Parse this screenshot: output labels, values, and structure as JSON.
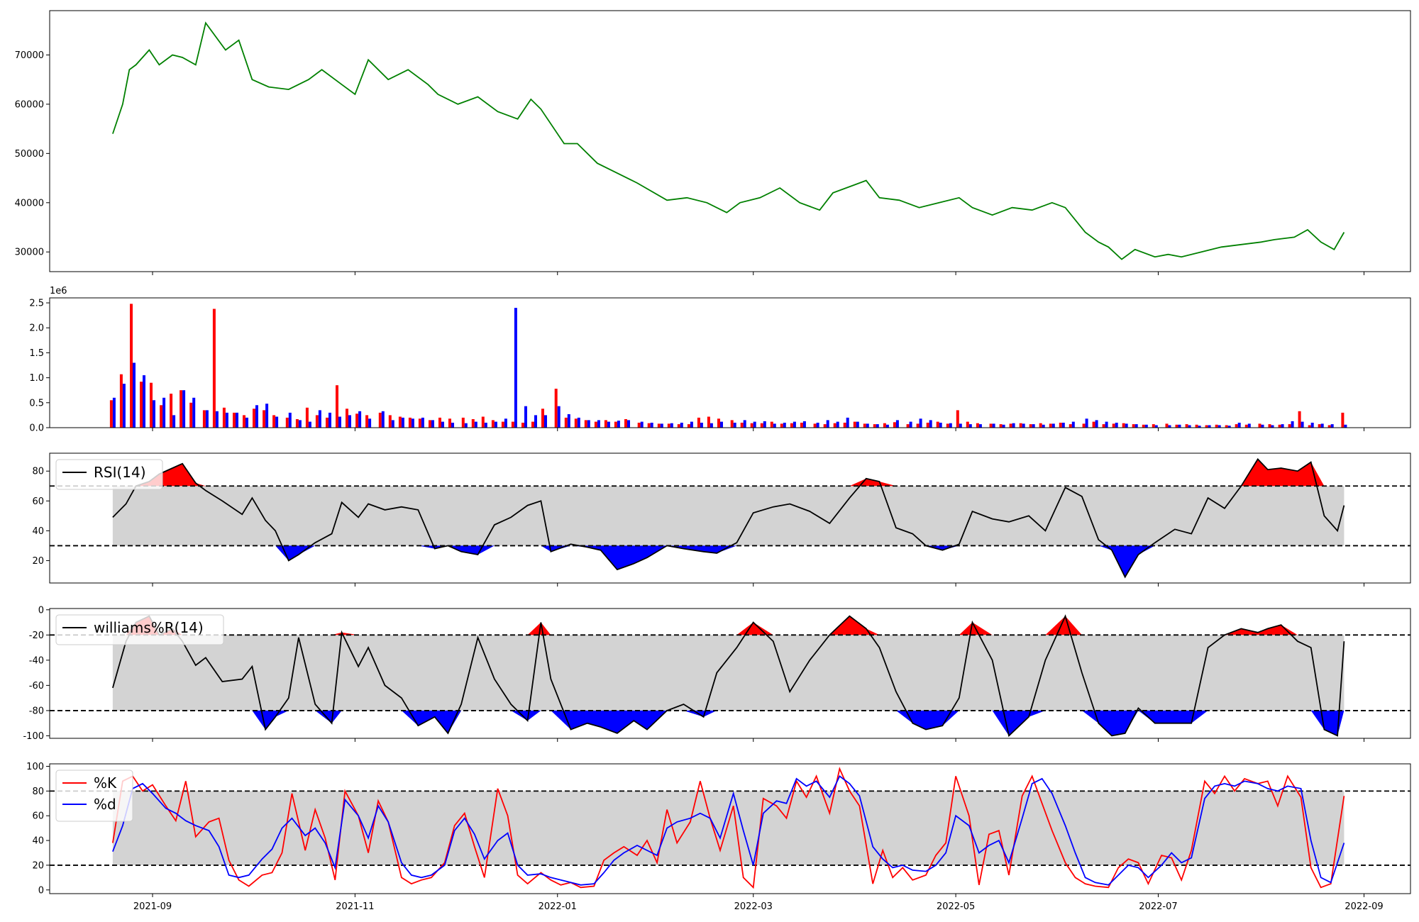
{
  "chart_data": [
    {
      "type": "line",
      "panel": "price",
      "color": "#008000",
      "x_axis": "date",
      "ylim": [
        26000,
        79000
      ],
      "yticks": [
        30000,
        40000,
        50000,
        60000,
        70000
      ],
      "x": [
        "2021-08-20",
        "2021-08-23",
        "2021-08-25",
        "2021-08-27",
        "2021-08-31",
        "2021-09-03",
        "2021-09-07",
        "2021-09-10",
        "2021-09-14",
        "2021-09-17",
        "2021-09-23",
        "2021-09-27",
        "2021-10-01",
        "2021-10-06",
        "2021-10-12",
        "2021-10-18",
        "2021-10-22",
        "2021-10-28",
        "2021-11-01",
        "2021-11-05",
        "2021-11-11",
        "2021-11-17",
        "2021-11-23",
        "2021-11-26",
        "2021-12-02",
        "2021-12-08",
        "2021-12-14",
        "2021-12-20",
        "2021-12-24",
        "2021-12-27",
        "2022-01-03",
        "2022-01-07",
        "2022-01-13",
        "2022-01-19",
        "2022-01-25",
        "2022-02-03",
        "2022-02-09",
        "2022-02-15",
        "2022-02-21",
        "2022-02-25",
        "2022-03-03",
        "2022-03-09",
        "2022-03-15",
        "2022-03-21",
        "2022-03-25",
        "2022-03-31",
        "2022-04-04",
        "2022-04-08",
        "2022-04-14",
        "2022-04-20",
        "2022-04-26",
        "2022-05-02",
        "2022-05-06",
        "2022-05-12",
        "2022-05-18",
        "2022-05-24",
        "2022-05-30",
        "2022-06-03",
        "2022-06-09",
        "2022-06-13",
        "2022-06-16",
        "2022-06-20",
        "2022-06-24",
        "2022-06-30",
        "2022-07-04",
        "2022-07-08",
        "2022-07-14",
        "2022-07-20",
        "2022-07-26",
        "2022-08-01",
        "2022-08-05",
        "2022-08-11",
        "2022-08-15",
        "2022-08-19",
        "2022-08-23",
        "2022-08-26"
      ],
      "values": [
        54000,
        60000,
        67000,
        68000,
        71000,
        68000,
        70000,
        69500,
        68000,
        76500,
        71000,
        73000,
        65000,
        63500,
        63000,
        65000,
        67000,
        64000,
        62000,
        69000,
        65000,
        67000,
        64000,
        62000,
        60000,
        61500,
        58500,
        57000,
        61000,
        59000,
        52000,
        52000,
        48000,
        46000,
        44000,
        40500,
        41000,
        40000,
        38000,
        40000,
        41000,
        43000,
        40000,
        38500,
        42000,
        43500,
        44500,
        41000,
        40500,
        39000,
        40000,
        41000,
        39000,
        37500,
        39000,
        38500,
        40000,
        39000,
        34000,
        32000,
        31000,
        28500,
        30500,
        29000,
        29500,
        29000,
        30000,
        31000,
        31500,
        32000,
        32500,
        33000,
        34500,
        32000,
        30500,
        34000
      ]
    },
    {
      "type": "bar",
      "panel": "volume",
      "exponent_label": "1e6",
      "ylim": [
        0,
        2.6
      ],
      "yticks": [
        "0.0",
        "0.5",
        "1.0",
        "1.5",
        "2.0",
        "2.5"
      ],
      "x_start": "2021-08-20",
      "x_end": "2022-08-26",
      "series": [
        {
          "color": "#ff0000",
          "values_millions": [
            0.55,
            1.07,
            2.48,
            0.92,
            0.9,
            0.45,
            0.68,
            0.75,
            0.5,
            0.35,
            2.38,
            0.4,
            0.3,
            0.25,
            0.38,
            0.35,
            0.25,
            0.2,
            0.17,
            0.4,
            0.25,
            0.2,
            0.85,
            0.38,
            0.28,
            0.25,
            0.3,
            0.25,
            0.22,
            0.2,
            0.18,
            0.15,
            0.2,
            0.18,
            0.2,
            0.17,
            0.22,
            0.15,
            0.12,
            0.12,
            0.1,
            0.12,
            0.38,
            0.78,
            0.2,
            0.18,
            0.15,
            0.12,
            0.15,
            0.12,
            0.17,
            0.1,
            0.09,
            0.08,
            0.08,
            0.07,
            0.07,
            0.2,
            0.22,
            0.18,
            0.15,
            0.1,
            0.09,
            0.09,
            0.12,
            0.08,
            0.09,
            0.1,
            0.08,
            0.07,
            0.09,
            0.1,
            0.12,
            0.08,
            0.07,
            0.09,
            0.11,
            0.07,
            0.08,
            0.1,
            0.12,
            0.08,
            0.35,
            0.12,
            0.09,
            0.08,
            0.07,
            0.08,
            0.09,
            0.07,
            0.09,
            0.08,
            0.1,
            0.07,
            0.08,
            0.12,
            0.07,
            0.08,
            0.09,
            0.07,
            0.06,
            0.07,
            0.08,
            0.06,
            0.07,
            0.06,
            0.05,
            0.06,
            0.05,
            0.07,
            0.06,
            0.08,
            0.07,
            0.06,
            0.07,
            0.33,
            0.05,
            0.07,
            0.05,
            0.3
          ]
        },
        {
          "color": "#0000ff",
          "values_millions": [
            0.6,
            0.88,
            1.3,
            1.05,
            0.55,
            0.6,
            0.25,
            0.75,
            0.6,
            0.35,
            0.33,
            0.3,
            0.3,
            0.2,
            0.45,
            0.48,
            0.22,
            0.3,
            0.15,
            0.12,
            0.35,
            0.3,
            0.22,
            0.25,
            0.33,
            0.18,
            0.33,
            0.15,
            0.2,
            0.18,
            0.2,
            0.15,
            0.12,
            0.1,
            0.09,
            0.12,
            0.1,
            0.12,
            0.18,
            2.4,
            0.43,
            0.25,
            0.25,
            0.43,
            0.27,
            0.2,
            0.15,
            0.15,
            0.12,
            0.14,
            0.15,
            0.12,
            0.1,
            0.08,
            0.09,
            0.1,
            0.12,
            0.1,
            0.09,
            0.12,
            0.1,
            0.15,
            0.12,
            0.13,
            0.08,
            0.1,
            0.12,
            0.13,
            0.1,
            0.15,
            0.12,
            0.2,
            0.12,
            0.08,
            0.07,
            0.06,
            0.15,
            0.12,
            0.18,
            0.15,
            0.1,
            0.09,
            0.08,
            0.07,
            0.07,
            0.08,
            0.06,
            0.09,
            0.08,
            0.07,
            0.06,
            0.08,
            0.1,
            0.12,
            0.18,
            0.15,
            0.12,
            0.1,
            0.08,
            0.07,
            0.06,
            0.05,
            0.05,
            0.06,
            0.05,
            0.04,
            0.05,
            0.05,
            0.04,
            0.1,
            0.08,
            0.06,
            0.05,
            0.07,
            0.13,
            0.12,
            0.1,
            0.08,
            0.07,
            0.06
          ]
        }
      ]
    },
    {
      "type": "line",
      "panel": "rsi",
      "legend": [
        "RSI(14)"
      ],
      "legend_position": "upper-left",
      "ylim": [
        5,
        92
      ],
      "yticks": [
        20,
        40,
        60,
        80
      ],
      "upper_threshold": 70,
      "lower_threshold": 30,
      "colors": {
        "line": "#000000",
        "overbought": "#ff0000",
        "oversold": "#0000ff",
        "band": "#d3d3d3"
      },
      "x": [
        "2021-08-20",
        "2021-08-24",
        "2021-08-27",
        "2021-08-31",
        "2021-09-03",
        "2021-09-07",
        "2021-09-10",
        "2021-09-14",
        "2021-09-17",
        "2021-09-22",
        "2021-09-28",
        "2021-10-01",
        "2021-10-05",
        "2021-10-08",
        "2021-10-12",
        "2021-10-15",
        "2021-10-20",
        "2021-10-25",
        "2021-10-28",
        "2021-11-02",
        "2021-11-05",
        "2021-11-10",
        "2021-11-15",
        "2021-11-20",
        "2021-11-25",
        "2021-11-29",
        "2021-12-03",
        "2021-12-08",
        "2021-12-13",
        "2021-12-18",
        "2021-12-23",
        "2021-12-27",
        "2021-12-30",
        "2022-01-05",
        "2022-01-10",
        "2022-01-14",
        "2022-01-19",
        "2022-01-24",
        "2022-01-28",
        "2022-02-03",
        "2022-02-08",
        "2022-02-14",
        "2022-02-18",
        "2022-02-24",
        "2022-03-01",
        "2022-03-07",
        "2022-03-12",
        "2022-03-18",
        "2022-03-24",
        "2022-03-30",
        "2022-04-04",
        "2022-04-08",
        "2022-04-13",
        "2022-04-18",
        "2022-04-22",
        "2022-04-27",
        "2022-05-02",
        "2022-05-06",
        "2022-05-12",
        "2022-05-17",
        "2022-05-23",
        "2022-05-28",
        "2022-06-03",
        "2022-06-08",
        "2022-06-13",
        "2022-06-17",
        "2022-06-21",
        "2022-06-25",
        "2022-06-30",
        "2022-07-06",
        "2022-07-11",
        "2022-07-16",
        "2022-07-21",
        "2022-07-26",
        "2022-07-31",
        "2022-08-03",
        "2022-08-07",
        "2022-08-12",
        "2022-08-16",
        "2022-08-20",
        "2022-08-24",
        "2022-08-26"
      ],
      "values": [
        49,
        58,
        70,
        73,
        78,
        82,
        85,
        72,
        67,
        60,
        51,
        62,
        47,
        40,
        20,
        24,
        32,
        38,
        59,
        49,
        58,
        54,
        56,
        54,
        28,
        30,
        26,
        24,
        44,
        49,
        57,
        60,
        26,
        31,
        29,
        27,
        14,
        18,
        22,
        30,
        28,
        26,
        25,
        32,
        52,
        56,
        58,
        53,
        45,
        62,
        75,
        73,
        42,
        38,
        30,
        27,
        31,
        53,
        48,
        46,
        50,
        40,
        69,
        63,
        34,
        27,
        9,
        24,
        32,
        41,
        38,
        62,
        55,
        70,
        88,
        81,
        82,
        80,
        86,
        50,
        40,
        57
      ]
    },
    {
      "type": "line",
      "panel": "williams_r",
      "legend": [
        "williams%R(14)"
      ],
      "legend_position": "upper-left",
      "ylim": [
        -102,
        1
      ],
      "yticks": [
        -100,
        -80,
        -60,
        -40,
        -20,
        0
      ],
      "upper_threshold": -20,
      "lower_threshold": -80,
      "colors": {
        "line": "#000000",
        "overbought": "#ff0000",
        "oversold": "#0000ff",
        "band": "#d3d3d3"
      },
      "x": [
        "2021-08-20",
        "2021-08-24",
        "2021-08-27",
        "2021-08-31",
        "2021-09-03",
        "2021-09-07",
        "2021-09-10",
        "2021-09-14",
        "2021-09-17",
        "2021-09-22",
        "2021-09-28",
        "2021-10-01",
        "2021-10-05",
        "2021-10-08",
        "2021-10-12",
        "2021-10-15",
        "2021-10-20",
        "2021-10-25",
        "2021-10-28",
        "2021-11-02",
        "2021-11-05",
        "2021-11-10",
        "2021-11-15",
        "2021-11-20",
        "2021-11-25",
        "2021-11-29",
        "2021-12-03",
        "2021-12-08",
        "2021-12-13",
        "2021-12-18",
        "2021-12-23",
        "2021-12-27",
        "2021-12-30",
        "2022-01-05",
        "2022-01-10",
        "2022-01-14",
        "2022-01-19",
        "2022-01-24",
        "2022-01-28",
        "2022-02-03",
        "2022-02-08",
        "2022-02-14",
        "2022-02-18",
        "2022-02-24",
        "2022-03-01",
        "2022-03-07",
        "2022-03-12",
        "2022-03-18",
        "2022-03-24",
        "2022-03-30",
        "2022-04-04",
        "2022-04-08",
        "2022-04-13",
        "2022-04-18",
        "2022-04-22",
        "2022-04-27",
        "2022-05-02",
        "2022-05-06",
        "2022-05-12",
        "2022-05-17",
        "2022-05-23",
        "2022-05-28",
        "2022-06-03",
        "2022-06-08",
        "2022-06-13",
        "2022-06-17",
        "2022-06-21",
        "2022-06-25",
        "2022-06-30",
        "2022-07-06",
        "2022-07-11",
        "2022-07-16",
        "2022-07-21",
        "2022-07-26",
        "2022-07-31",
        "2022-08-03",
        "2022-08-07",
        "2022-08-12",
        "2022-08-16",
        "2022-08-20",
        "2022-08-24",
        "2022-08-26"
      ],
      "values": [
        -62,
        -25,
        -10,
        -5,
        -20,
        -15,
        -25,
        -44,
        -38,
        -57,
        -55,
        -45,
        -95,
        -85,
        -70,
        -22,
        -75,
        -90,
        -18,
        -45,
        -30,
        -60,
        -70,
        -92,
        -85,
        -98,
        -75,
        -22,
        -55,
        -75,
        -88,
        -10,
        -55,
        -95,
        -90,
        -93,
        -98,
        -88,
        -95,
        -80,
        -75,
        -85,
        -50,
        -30,
        -10,
        -25,
        -65,
        -40,
        -20,
        -5,
        -15,
        -30,
        -65,
        -90,
        -95,
        -92,
        -70,
        -10,
        -40,
        -100,
        -85,
        -40,
        -5,
        -50,
        -90,
        -100,
        -98,
        -78,
        -90,
        -90,
        -90,
        -30,
        -20,
        -15,
        -18,
        -15,
        -12,
        -25,
        -30,
        -95,
        -100,
        -25
      ]
    },
    {
      "type": "line",
      "panel": "stochastic",
      "legend": [
        "%K",
        "%d"
      ],
      "legend_position": "upper-left",
      "ylim": [
        -3,
        102
      ],
      "yticks": [
        0,
        20,
        40,
        60,
        80,
        100
      ],
      "upper_threshold": 80,
      "lower_threshold": 20,
      "x_start": "2021-08-20",
      "x_end": "2022-08-26",
      "series": [
        {
          "name": "%K",
          "color": "#ff0000",
          "values": [
            38,
            88,
            92,
            80,
            85,
            68,
            56,
            88,
            43,
            55,
            58,
            24,
            8,
            3,
            12,
            14,
            30,
            78,
            32,
            65,
            42,
            8,
            80,
            60,
            30,
            72,
            55,
            10,
            5,
            8,
            10,
            22,
            52,
            62,
            35,
            10,
            82,
            60,
            12,
            5,
            14,
            8,
            4,
            6,
            2,
            3,
            24,
            30,
            35,
            28,
            40,
            22,
            65,
            38,
            55,
            88,
            58,
            32,
            68,
            10,
            2,
            74,
            68,
            58,
            88,
            75,
            92,
            62,
            98,
            80,
            68,
            5,
            32,
            10,
            18,
            8,
            12,
            28,
            38,
            92,
            60,
            4,
            45,
            48,
            12,
            76,
            92,
            70,
            48,
            22,
            10,
            5,
            3,
            2,
            18,
            25,
            22,
            5,
            28,
            26,
            8,
            32,
            88,
            78,
            92,
            80,
            90,
            86,
            88,
            68,
            92,
            75,
            18,
            2,
            5,
            76
          ]
        },
        {
          "name": "%d",
          "color": "#0000ff",
          "values": [
            31,
            52,
            82,
            86,
            78,
            66,
            62,
            56,
            52,
            48,
            35,
            12,
            10,
            12,
            25,
            33,
            50,
            58,
            44,
            50,
            38,
            18,
            73,
            60,
            42,
            68,
            55,
            22,
            12,
            10,
            12,
            20,
            48,
            58,
            45,
            25,
            40,
            46,
            20,
            12,
            13,
            10,
            8,
            6,
            4,
            5,
            14,
            24,
            30,
            36,
            32,
            28,
            50,
            55,
            58,
            62,
            58,
            42,
            78,
            48,
            20,
            62,
            72,
            70,
            90,
            84,
            88,
            75,
            92,
            86,
            76,
            35,
            25,
            18,
            20,
            16,
            15,
            20,
            30,
            60,
            52,
            30,
            36,
            40,
            22,
            58,
            86,
            90,
            78,
            52,
            30,
            10,
            6,
            4,
            12,
            20,
            18,
            10,
            20,
            30,
            22,
            26,
            74,
            84,
            86,
            84,
            88,
            86,
            82,
            80,
            84,
            82,
            40,
            10,
            6,
            38
          ]
        }
      ]
    },
    {
      "type": "axis",
      "panel": "shared_x",
      "xticks": [
        "2021-09",
        "2021-11",
        "2022-01",
        "2022-03",
        "2022-05",
        "2022-07",
        "2022-09"
      ],
      "xlim": [
        "2021-08-01",
        "2022-09-15"
      ]
    }
  ]
}
